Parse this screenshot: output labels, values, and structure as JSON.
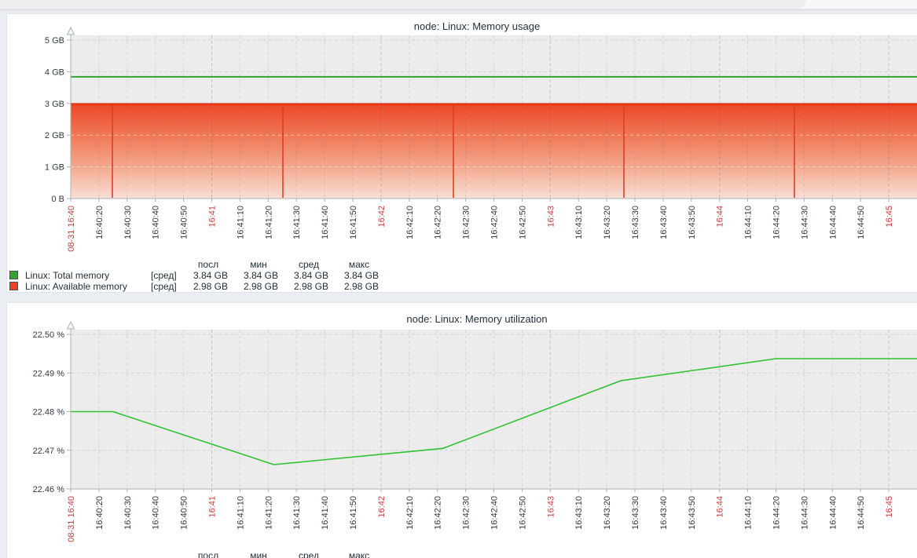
{
  "app": {
    "description": "Zabbix dashboard with two graph widgets"
  },
  "colors": {
    "page_background": "#eaeef2",
    "panel_background": "#ffffff",
    "plot_background": "#ececec",
    "grid_line": "#cdd3d8",
    "axis_line": "#a9b2b9",
    "time_label_red": "#cc3b3b",
    "total_memory_green": "#2fa32f",
    "available_memory_red": "#e23317",
    "utilization_green": "#2ec22e"
  },
  "charts": [
    {
      "title": "node: Linux: Memory usage",
      "y_axis_labels": [
        "5 GB",
        "4 GB",
        "3 GB",
        "2 GB",
        "1 GB",
        "0 B"
      ],
      "legend": {
        "headers": [
          "посл",
          "мин",
          "сред",
          "макс"
        ],
        "rows": [
          {
            "swatch_color": "#33a433",
            "label": "Linux: Total memory",
            "aggregation": "[сред]",
            "values": [
              "3.84 GB",
              "3.84 GB",
              "3.84 GB",
              "3.84 GB"
            ]
          },
          {
            "swatch_color": "#e8441f",
            "label": "Linux: Available memory",
            "aggregation": "[сред]",
            "values": [
              "2.98 GB",
              "2.98 GB",
              "2.98 GB",
              "2.98 GB"
            ]
          }
        ]
      }
    },
    {
      "title": "node: Linux: Memory utilization",
      "y_axis_labels": [
        "22.50 %",
        "22.49 %",
        "22.48 %",
        "22.47 %",
        "22.46 %"
      ],
      "legend": {
        "headers": [
          "посл",
          "мин",
          "сред",
          "макс"
        ],
        "rows": []
      }
    }
  ],
  "time_axis": {
    "labels": [
      {
        "t": "08-31 16:40",
        "red": true
      },
      {
        "t": "16:40:20",
        "red": false
      },
      {
        "t": "16:40:30",
        "red": false
      },
      {
        "t": "16:40:40",
        "red": false
      },
      {
        "t": "16:40:50",
        "red": false
      },
      {
        "t": "16:41",
        "red": true
      },
      {
        "t": "16:41:10",
        "red": false
      },
      {
        "t": "16:41:20",
        "red": false
      },
      {
        "t": "16:41:30",
        "red": false
      },
      {
        "t": "16:41:40",
        "red": false
      },
      {
        "t": "16:41:50",
        "red": false
      },
      {
        "t": "16:42",
        "red": true
      },
      {
        "t": "16:42:10",
        "red": false
      },
      {
        "t": "16:42:20",
        "red": false
      },
      {
        "t": "16:42:30",
        "red": false
      },
      {
        "t": "16:42:40",
        "red": false
      },
      {
        "t": "16:42:50",
        "red": false
      },
      {
        "t": "16:43",
        "red": true
      },
      {
        "t": "16:43:10",
        "red": false
      },
      {
        "t": "16:43:20",
        "red": false
      },
      {
        "t": "16:43:30",
        "red": false
      },
      {
        "t": "16:43:40",
        "red": false
      },
      {
        "t": "16:43:50",
        "red": false
      },
      {
        "t": "16:44",
        "red": true
      },
      {
        "t": "16:44:10",
        "red": false
      },
      {
        "t": "16:44:20",
        "red": false
      },
      {
        "t": "16:44:30",
        "red": false
      },
      {
        "t": "16:44:40",
        "red": false
      },
      {
        "t": "16:44:50",
        "red": false
      },
      {
        "t": "16:45",
        "red": true
      }
    ]
  },
  "chart_data": [
    {
      "type": "area",
      "title": "node: Linux: Memory usage",
      "xlabel": "",
      "ylabel": "",
      "ylim": [
        "0 B",
        "5 GB"
      ],
      "x_range": [
        "08-31 16:40",
        "16:45"
      ],
      "grid": true,
      "legend_position": "bottom",
      "series": [
        {
          "name": "Linux: Total memory",
          "style": "line",
          "color": "#2fa32f",
          "constant_value_gb": 3.84,
          "stats": {
            "last": "3.84 GB",
            "min": "3.84 GB",
            "avg": "3.84 GB",
            "max": "3.84 GB"
          }
        },
        {
          "name": "Linux: Available memory",
          "style": "gradient-area",
          "color": "#e23317",
          "constant_value_gb": 2.98,
          "stats": {
            "last": "2.98 GB",
            "min": "2.98 GB",
            "avg": "2.98 GB",
            "max": "2.98 GB"
          }
        }
      ]
    },
    {
      "type": "line",
      "title": "node: Linux: Memory utilization",
      "xlabel": "",
      "ylabel": "",
      "ylim": [
        22.46,
        22.5
      ],
      "yticks": [
        22.5,
        22.49,
        22.48,
        22.47,
        22.46
      ],
      "x_range": [
        "08-31 16:40",
        "16:45"
      ],
      "grid": true,
      "legend_position": "bottom",
      "series": [
        {
          "name": "Linux: Memory utilization",
          "color": "#2ec22e",
          "points": [
            [
              "16:40:10",
              22.48
            ],
            [
              "16:40:25",
              22.48
            ],
            [
              "16:41:22",
              22.4663
            ],
            [
              "16:42:22",
              22.4705
            ],
            [
              "16:43:25",
              22.488
            ],
            [
              "16:44:20",
              22.4937
            ],
            [
              "16:45:15",
              22.4937
            ]
          ]
        }
      ]
    }
  ]
}
